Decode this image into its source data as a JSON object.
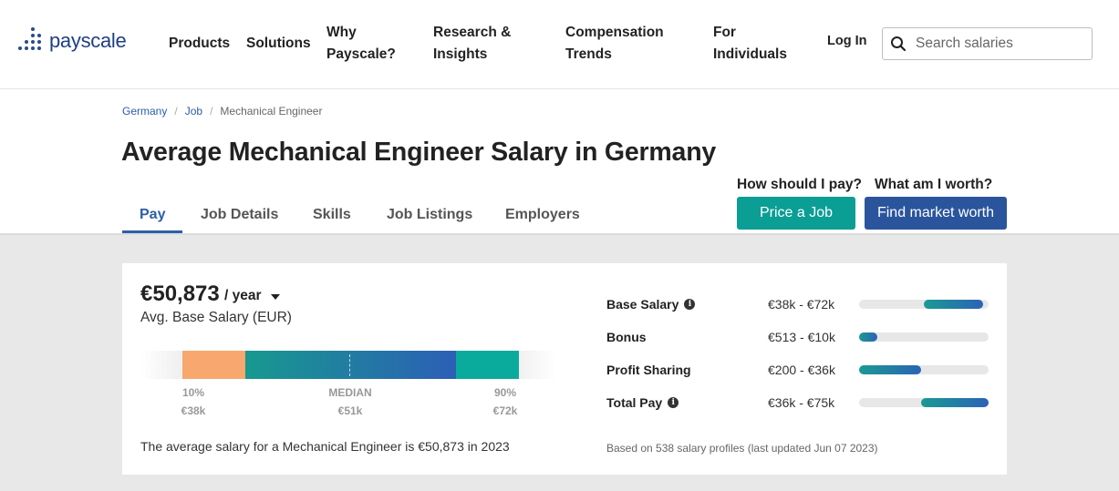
{
  "brand": {
    "name": "payscale"
  },
  "nav": {
    "items": [
      {
        "label": "Products"
      },
      {
        "label": "Solutions"
      },
      {
        "label": "Why Payscale?"
      },
      {
        "label": "Research & Insights"
      },
      {
        "label": "Compensation Trends"
      },
      {
        "label": "For Individuals"
      }
    ],
    "login": "Log In",
    "search_placeholder": "Search salaries"
  },
  "breadcrumb": {
    "items": [
      "Germany",
      "Job",
      "Mechanical Engineer"
    ]
  },
  "page_title": "Average Mechanical Engineer Salary in Germany",
  "tabs": [
    {
      "label": "Pay",
      "active": true
    },
    {
      "label": "Job Details",
      "active": false
    },
    {
      "label": "Skills",
      "active": false
    },
    {
      "label": "Job Listings",
      "active": false
    },
    {
      "label": "Employers",
      "active": false
    }
  ],
  "cta": {
    "price_label": "How should I pay?",
    "price_button": "Price a Job",
    "worth_label": "What am I worth?",
    "worth_button": "Find market worth"
  },
  "colors": {
    "teal": "#0b9e95",
    "blue": "#2a559c",
    "orange": "#f8a86e",
    "link": "#2b5ea7"
  },
  "salary": {
    "value": "€50,873",
    "unit": "/ year",
    "label": "Avg. Base Salary (EUR)",
    "percentiles": {
      "p10_label": "10%",
      "p10_value": "€38k",
      "median_label": "MEDIAN",
      "median_value": "€51k",
      "p90_label": "90%",
      "p90_value": "€72k"
    },
    "summary": "The average salary for a Mechanical Engineer is €50,873 in 2023"
  },
  "pay_breakdown": [
    {
      "name": "Base Salary",
      "info": true,
      "range": "€38k - €72k",
      "fill_start": 0.5,
      "fill_end": 0.96
    },
    {
      "name": "Bonus",
      "info": false,
      "range": "€513 - €10k",
      "fill_start": 0.0,
      "fill_end": 0.14
    },
    {
      "name": "Profit Sharing",
      "info": false,
      "range": "€200 - €36k",
      "fill_start": 0.0,
      "fill_end": 0.48
    },
    {
      "name": "Total Pay",
      "info": true,
      "range": "€36k - €75k",
      "fill_start": 0.48,
      "fill_end": 1.0
    }
  ],
  "footnote": "Based on 538 salary profiles (last updated Jun 07 2023)"
}
